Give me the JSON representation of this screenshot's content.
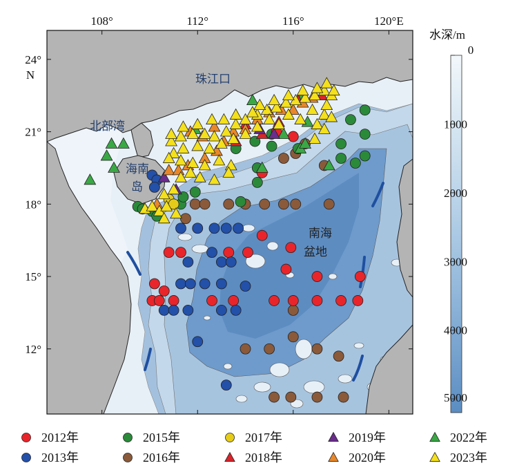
{
  "map": {
    "lon_ticks": [
      "108°",
      "112°",
      "116°",
      "120°E"
    ],
    "lon_values": [
      108,
      112,
      116,
      120
    ],
    "lat_ticks": [
      "24°",
      "21°",
      "18°",
      "15°",
      "12°"
    ],
    "lat_values": [
      24,
      21,
      18,
      15,
      12
    ],
    "lat_unit": "N",
    "extent": {
      "lon_min": 105.7,
      "lon_max": 121.0,
      "lat_min": 9.3,
      "lat_max": 25.2
    },
    "place_labels": {
      "pearl_river_mouth": "珠江口",
      "beibu_gulf": "北部湾",
      "hainan_island": "海南岛",
      "sea_basin": "南海盆地"
    },
    "colorbar": {
      "title": "水深/m",
      "ticks": [
        "0",
        "1000",
        "2000",
        "3000",
        "4000",
        "5000"
      ],
      "values": [
        0,
        1000,
        2000,
        3000,
        4000,
        5000
      ],
      "color_shallow": "#eef4fa",
      "color_deep": "#5a8fc2"
    },
    "colors": {
      "land": "#b4b4b4",
      "shelf": "#e8f0f7",
      "slope": "#c3d8ea",
      "mid": "#a3c1de",
      "deep": "#6e9bcc",
      "deepest": "#5d8cc1",
      "basin_fault_marks": "#1f4fa0"
    }
  },
  "legend": {
    "rows": [
      [
        {
          "label": "2012年",
          "shape": "circle",
          "color": "#e8252b"
        },
        {
          "label": "2015年",
          "shape": "circle",
          "color": "#2a8a3a"
        },
        {
          "label": "2017年",
          "shape": "circle",
          "color": "#e6cc1a"
        },
        {
          "label": "2019年",
          "shape": "triangle",
          "color": "#6a2d8c"
        },
        {
          "label": "2022年",
          "shape": "triangle",
          "color": "#3aa845"
        }
      ],
      [
        {
          "label": "2013年",
          "shape": "circle",
          "color": "#2350a8"
        },
        {
          "label": "2016年",
          "shape": "circle",
          "color": "#8a5a3a"
        },
        {
          "label": "2018年",
          "shape": "triangle",
          "color": "#d9252b"
        },
        {
          "label": "2020年",
          "shape": "triangle",
          "color": "#e8872a"
        },
        {
          "label": "2023年",
          "shape": "triangle",
          "color": "#f4e01c"
        }
      ]
    ]
  },
  "stations": {
    "y2012": [
      [
        110.8,
        16.0
      ],
      [
        111.3,
        16.0
      ],
      [
        111.0,
        14.0
      ],
      [
        110.2,
        14.7
      ],
      [
        110.6,
        14.4
      ],
      [
        110.1,
        14.0
      ],
      [
        110.4,
        14.0
      ],
      [
        112.6,
        14.0
      ],
      [
        113.3,
        16.0
      ],
      [
        113.5,
        14.0
      ],
      [
        114.1,
        16.0
      ],
      [
        114.7,
        16.7
      ],
      [
        115.2,
        14.0
      ],
      [
        115.7,
        15.3
      ],
      [
        115.9,
        16.2
      ],
      [
        116.0,
        14.0
      ],
      [
        117.0,
        14.0
      ],
      [
        117.0,
        15.0
      ],
      [
        118.0,
        14.0
      ],
      [
        118.7,
        14.0
      ],
      [
        118.8,
        15.0
      ],
      [
        114.7,
        19.3
      ],
      [
        115.3,
        21.0
      ],
      [
        116.0,
        20.8
      ]
    ],
    "y2013": [
      [
        111.3,
        17.0
      ],
      [
        112.0,
        17.0
      ],
      [
        111.6,
        15.6
      ],
      [
        112.6,
        16.0
      ],
      [
        113.0,
        15.6
      ],
      [
        113.4,
        15.6
      ],
      [
        111.3,
        14.7
      ],
      [
        111.7,
        14.7
      ],
      [
        112.3,
        14.7
      ],
      [
        113.0,
        14.7
      ],
      [
        114.0,
        14.6
      ],
      [
        110.6,
        13.6
      ],
      [
        111.0,
        13.6
      ],
      [
        111.6,
        13.6
      ],
      [
        112.0,
        12.3
      ],
      [
        113.0,
        13.6
      ],
      [
        113.6,
        13.6
      ],
      [
        113.2,
        10.5
      ],
      [
        112.7,
        17.0
      ],
      [
        113.2,
        17.0
      ],
      [
        113.7,
        17.0
      ],
      [
        110.1,
        19.2
      ],
      [
        110.3,
        19.0
      ],
      [
        110.2,
        18.7
      ]
    ],
    "y2015": [
      [
        109.5,
        17.9
      ],
      [
        109.7,
        17.8
      ],
      [
        110.1,
        17.7
      ],
      [
        110.3,
        17.5
      ],
      [
        110.9,
        18.0
      ],
      [
        111.3,
        18.0
      ],
      [
        111.9,
        18.5
      ],
      [
        111.4,
        18.3
      ],
      [
        113.8,
        18.1
      ],
      [
        114.5,
        18.9
      ],
      [
        114.5,
        19.5
      ],
      [
        113.6,
        20.3
      ],
      [
        114.4,
        20.6
      ],
      [
        115.1,
        20.4
      ],
      [
        116.2,
        20.3
      ],
      [
        118.4,
        21.5
      ],
      [
        119.0,
        21.9
      ],
      [
        119.0,
        20.9
      ],
      [
        119.0,
        20.0
      ],
      [
        118.6,
        19.7
      ],
      [
        118.0,
        20.5
      ],
      [
        118.0,
        19.9
      ],
      [
        115.1,
        20.9
      ]
    ],
    "y2016": [
      [
        111.5,
        17.4
      ],
      [
        111.9,
        18.0
      ],
      [
        112.3,
        18.0
      ],
      [
        113.3,
        18.0
      ],
      [
        114.0,
        18.0
      ],
      [
        114.8,
        18.0
      ],
      [
        115.6,
        18.0
      ],
      [
        116.1,
        18.0
      ],
      [
        117.5,
        18.0
      ],
      [
        116.0,
        13.6
      ],
      [
        114.0,
        12.0
      ],
      [
        115.0,
        12.0
      ],
      [
        116.0,
        12.5
      ],
      [
        117.0,
        12.0
      ],
      [
        117.9,
        11.7
      ],
      [
        115.2,
        10.0
      ],
      [
        115.9,
        10.0
      ],
      [
        117.0,
        10.0
      ],
      [
        118.1,
        10.0
      ],
      [
        117.3,
        19.6
      ],
      [
        115.6,
        19.9
      ],
      [
        116.1,
        20.1
      ],
      [
        116.5,
        20.5
      ]
    ],
    "y2017": [
      [
        110.8,
        18.2
      ],
      [
        111.0,
        18.0
      ]
    ],
    "y2018": [
      [
        113.6,
        20.6
      ],
      [
        114.0,
        21.3
      ],
      [
        114.7,
        20.9
      ],
      [
        115.4,
        21.4
      ],
      [
        116.2,
        22.3
      ],
      [
        117.2,
        22.5
      ]
    ],
    "y2019": [
      [
        110.6,
        19.1
      ],
      [
        111.1,
        18.6
      ],
      [
        114.6,
        21.1
      ],
      [
        115.2,
        20.9
      ]
    ],
    "y2020": [
      [
        110.3,
        18.0
      ],
      [
        110.8,
        19.4
      ],
      [
        111.2,
        19.4
      ],
      [
        111.6,
        19.6
      ],
      [
        112.3,
        19.9
      ],
      [
        112.8,
        20.2
      ],
      [
        113.1,
        20.6
      ],
      [
        113.5,
        21.0
      ],
      [
        114.0,
        21.1
      ],
      [
        114.5,
        21.5
      ],
      [
        115.0,
        21.8
      ],
      [
        115.5,
        21.9
      ],
      [
        116.0,
        21.9
      ],
      [
        116.4,
        22.2
      ],
      [
        116.8,
        22.4
      ],
      [
        111.7,
        21.0
      ],
      [
        112.2,
        20.8
      ],
      [
        112.7,
        21.2
      ]
    ],
    "y2022": [
      [
        108.2,
        20.0
      ],
      [
        108.4,
        20.5
      ],
      [
        108.9,
        20.5
      ],
      [
        108.5,
        19.5
      ],
      [
        107.5,
        19.0
      ],
      [
        114.7,
        19.5
      ],
      [
        116.3,
        20.3
      ],
      [
        116.5,
        20.5
      ],
      [
        117.5,
        19.6
      ],
      [
        111.9,
        21.1
      ],
      [
        114.3,
        22.3
      ],
      [
        116.4,
        22.5
      ],
      [
        115.6,
        20.9
      ],
      [
        116.6,
        21.4
      ]
    ],
    "y2022_extra": [],
    "y2023": [
      [
        109.8,
        17.8
      ],
      [
        110.1,
        17.9
      ],
      [
        110.4,
        17.7
      ],
      [
        110.6,
        17.4
      ],
      [
        111.1,
        17.6
      ],
      [
        110.7,
        17.9
      ],
      [
        110.9,
        20.6
      ],
      [
        111.3,
        20.8
      ],
      [
        111.8,
        20.9
      ],
      [
        112.3,
        20.9
      ],
      [
        112.7,
        20.8
      ],
      [
        113.2,
        21.0
      ],
      [
        113.6,
        21.3
      ],
      [
        114.0,
        21.5
      ],
      [
        114.5,
        21.7
      ],
      [
        114.9,
        21.9
      ],
      [
        115.3,
        22.0
      ],
      [
        115.7,
        22.2
      ],
      [
        116.1,
        22.3
      ],
      [
        116.5,
        22.4
      ],
      [
        116.9,
        22.5
      ],
      [
        117.3,
        22.7
      ],
      [
        117.6,
        22.5
      ],
      [
        117.3,
        21.7
      ],
      [
        117.0,
        21.3
      ],
      [
        116.8,
        21.9
      ],
      [
        116.3,
        21.5
      ],
      [
        115.8,
        21.7
      ],
      [
        115.4,
        21.3
      ],
      [
        115.0,
        21.5
      ],
      [
        114.5,
        21.2
      ],
      [
        114.0,
        20.9
      ],
      [
        113.5,
        20.7
      ],
      [
        113.0,
        20.5
      ],
      [
        112.5,
        20.3
      ],
      [
        112.0,
        20.4
      ],
      [
        111.4,
        20.3
      ],
      [
        111.0,
        20.1
      ],
      [
        110.8,
        19.9
      ],
      [
        111.3,
        19.8
      ],
      [
        111.8,
        19.7
      ],
      [
        112.3,
        19.6
      ],
      [
        112.9,
        19.8
      ],
      [
        113.4,
        19.6
      ],
      [
        111.3,
        19.1
      ],
      [
        111.7,
        19.3
      ],
      [
        112.1,
        19.1
      ],
      [
        112.7,
        19.0
      ],
      [
        113.3,
        19.3
      ],
      [
        111.0,
        18.6
      ],
      [
        110.6,
        18.4
      ],
      [
        110.9,
        20.9
      ],
      [
        111.4,
        21.2
      ],
      [
        112.0,
        21.3
      ],
      [
        112.6,
        21.5
      ],
      [
        113.1,
        21.5
      ],
      [
        113.6,
        21.7
      ],
      [
        114.3,
        21.8
      ],
      [
        114.6,
        22.1
      ],
      [
        115.2,
        22.3
      ],
      [
        115.8,
        22.5
      ],
      [
        116.4,
        22.7
      ],
      [
        117.0,
        22.8
      ],
      [
        117.4,
        23.0
      ],
      [
        117.7,
        22.7
      ],
      [
        117.6,
        21.6
      ],
      [
        117.3,
        21.1
      ],
      [
        116.9,
        20.7
      ],
      [
        117.4,
        22.1
      ]
    ]
  }
}
